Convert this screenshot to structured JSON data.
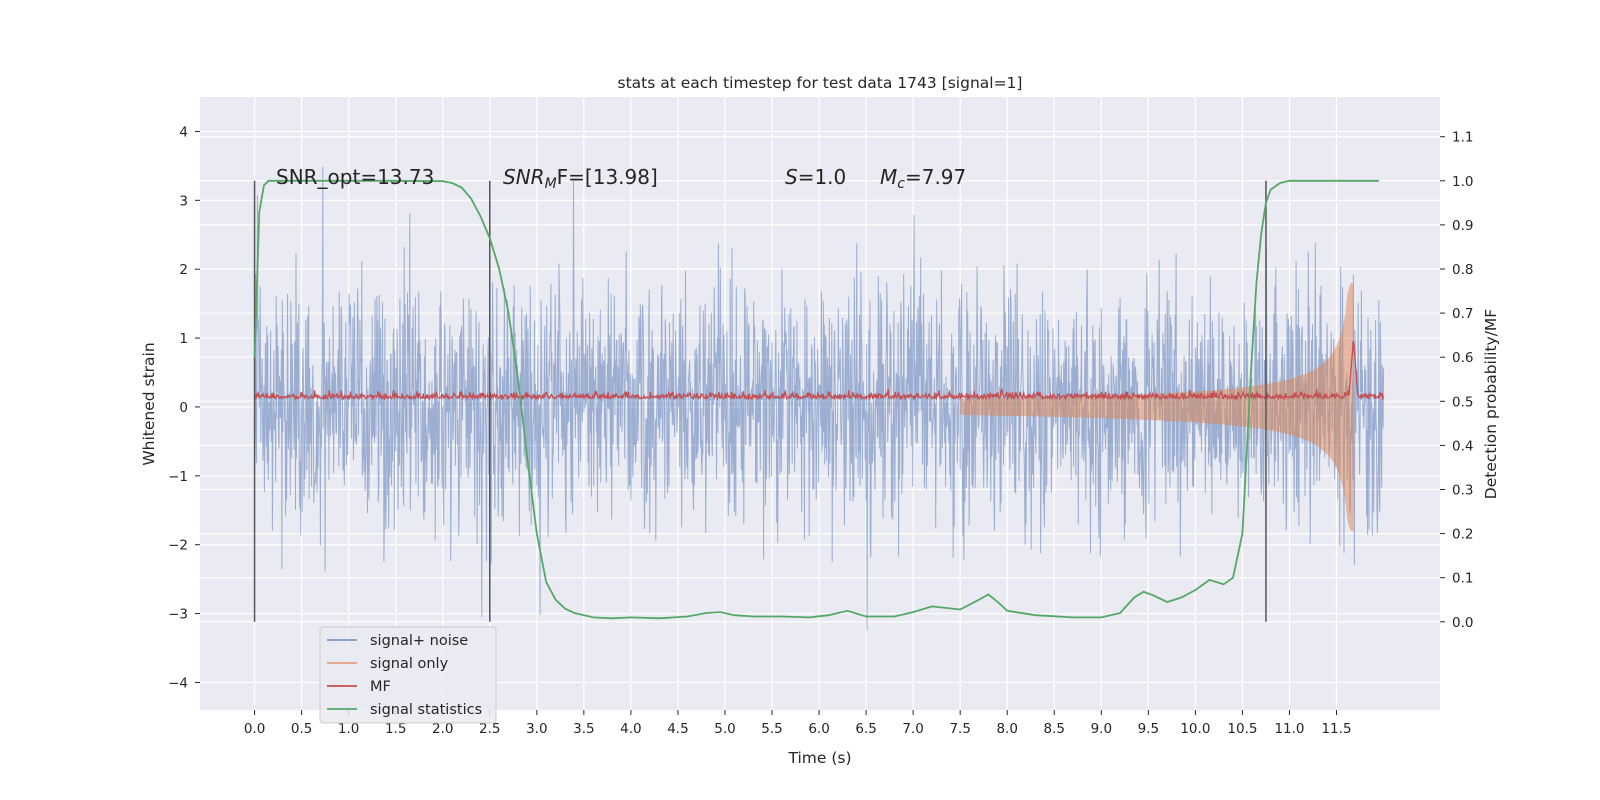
{
  "chart_data": {
    "type": "line",
    "title": "stats at each timestep for test data 1743 [signal=1]",
    "xlabel": "Time (s)",
    "ylabel": "Whitened strain",
    "y2label": "Detection probability/MF",
    "xlim": [
      -0.58,
      12.6
    ],
    "ylim": [
      -4.4,
      4.5
    ],
    "y2lim": [
      -0.2,
      1.19
    ],
    "x_ticks": [
      0.0,
      0.5,
      1.0,
      1.5,
      2.0,
      2.5,
      3.0,
      3.5,
      4.0,
      4.5,
      5.0,
      5.5,
      6.0,
      6.5,
      7.0,
      7.5,
      8.0,
      8.5,
      9.0,
      9.5,
      10.0,
      10.5,
      11.0,
      11.5
    ],
    "x_tick_labels": [
      "0.0",
      "0.5",
      "1.0",
      "1.5",
      "2.0",
      "2.5",
      "3.0",
      "3.5",
      "4.0",
      "4.5",
      "5.0",
      "5.5",
      "6.0",
      "6.5",
      "7.0",
      "7.5",
      "8.0",
      "8.5",
      "9.0",
      "9.5",
      "10.0",
      "10.5",
      "11.0",
      "11.5"
    ],
    "y_ticks": [
      -4,
      -3,
      -2,
      -1,
      0,
      1,
      2,
      3,
      4
    ],
    "y_tick_labels": [
      "−4",
      "−3",
      "−2",
      "−1",
      "0",
      "1",
      "2",
      "3",
      "4"
    ],
    "y2_ticks": [
      0.0,
      0.1,
      0.2,
      0.3,
      0.4,
      0.5,
      0.6,
      0.7,
      0.8,
      0.9,
      1.0,
      1.1
    ],
    "y2_tick_labels": [
      "0.0",
      "0.1",
      "0.2",
      "0.3",
      "0.4",
      "0.5",
      "0.6",
      "0.7",
      "0.8",
      "0.9",
      "1.0",
      "1.1"
    ],
    "grid": true,
    "legend_position": "lower-left",
    "series": [
      {
        "name": "signal+ noise",
        "color": "#4c72b0",
        "alpha": 0.5,
        "x_range": [
          0.0,
          12.0
        ],
        "amplitude_range": [
          -4.0,
          4.1
        ],
        "axis": "left"
      },
      {
        "name": "signal only",
        "color": "#dd8452",
        "alpha": 0.5,
        "x_range": [
          7.5,
          11.7
        ],
        "peak": 1.8,
        "peak_x": 11.68,
        "axis": "left"
      },
      {
        "name": "MF",
        "color": "#c44e52",
        "x_range": [
          0.0,
          12.0
        ],
        "baseline": 0.12,
        "peak": 1.0,
        "peak_x": 11.68,
        "axis": "left"
      },
      {
        "name": "signal statistics",
        "color": "#55a868",
        "axis": "right",
        "x": [
          0.0,
          0.05,
          0.1,
          0.15,
          0.25,
          0.5,
          1.0,
          1.5,
          2.0,
          2.1,
          2.2,
          2.3,
          2.4,
          2.5,
          2.6,
          2.7,
          2.8,
          2.9,
          3.0,
          3.1,
          3.2,
          3.3,
          3.4,
          3.6,
          3.8,
          4.0,
          4.3,
          4.6,
          4.8,
          4.95,
          5.1,
          5.3,
          5.6,
          5.9,
          6.1,
          6.3,
          6.5,
          6.8,
          7.0,
          7.2,
          7.5,
          7.7,
          7.8,
          7.9,
          8.0,
          8.3,
          8.7,
          9.0,
          9.2,
          9.35,
          9.45,
          9.55,
          9.7,
          9.85,
          10.0,
          10.15,
          10.3,
          10.4,
          10.5,
          10.55,
          10.6,
          10.65,
          10.7,
          10.75,
          10.8,
          10.9,
          11.0,
          11.1,
          11.2,
          11.5,
          11.95
        ],
        "y": [
          0.6,
          0.93,
          0.99,
          1.0,
          1.0,
          1.0,
          1.0,
          1.0,
          0.999,
          0.995,
          0.985,
          0.96,
          0.92,
          0.87,
          0.8,
          0.7,
          0.55,
          0.37,
          0.2,
          0.09,
          0.05,
          0.03,
          0.02,
          0.01,
          0.008,
          0.01,
          0.008,
          0.012,
          0.02,
          0.022,
          0.015,
          0.012,
          0.012,
          0.01,
          0.015,
          0.025,
          0.012,
          0.012,
          0.022,
          0.035,
          0.028,
          0.05,
          0.062,
          0.045,
          0.025,
          0.015,
          0.01,
          0.01,
          0.02,
          0.055,
          0.068,
          0.06,
          0.045,
          0.055,
          0.072,
          0.095,
          0.085,
          0.1,
          0.2,
          0.4,
          0.6,
          0.77,
          0.88,
          0.95,
          0.98,
          0.995,
          1.0,
          1.0,
          1.0,
          1.0,
          1.0
        ]
      }
    ],
    "vlines": [
      0.0,
      2.5,
      10.75
    ],
    "annotations": {
      "snr_opt": "SNR_opt=13.73",
      "snr_mf_label": "SNR",
      "snr_mf_sub": "M",
      "snr_mf_rest": "F=[13.98]",
      "s_label": "S",
      "s_value": "=1.0",
      "mc_label": "M",
      "mc_sub": "c",
      "mc_value": "=7.97"
    }
  }
}
